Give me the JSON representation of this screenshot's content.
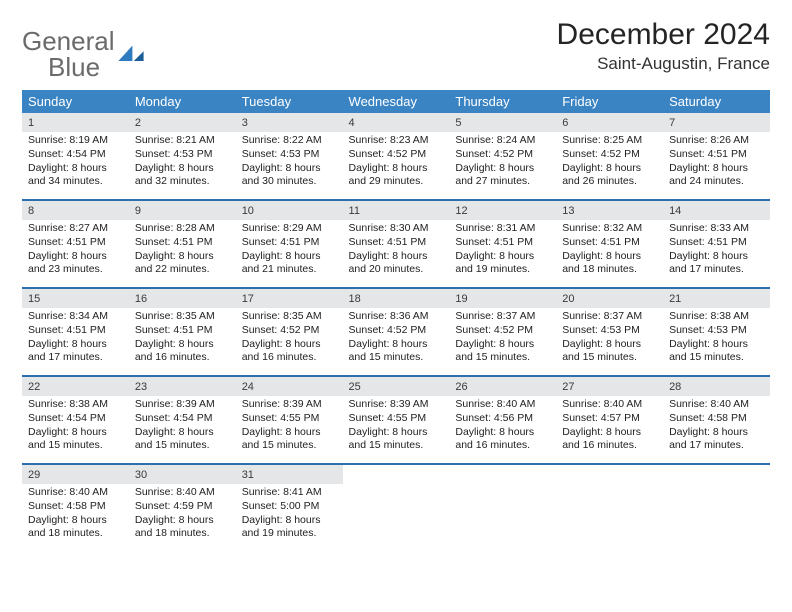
{
  "brand": {
    "word1": "General",
    "word2": "Blue"
  },
  "title": "December 2024",
  "location": "Saint-Augustin, France",
  "colors": {
    "header_bg": "#3b84c4",
    "header_text": "#ffffff",
    "row_sep": "#2a6fae",
    "daynum_bg": "#e4e6e8",
    "logo_gray": "#6b6b6b",
    "logo_blue": "#2f7bbf"
  },
  "weekdays": [
    "Sunday",
    "Monday",
    "Tuesday",
    "Wednesday",
    "Thursday",
    "Friday",
    "Saturday"
  ],
  "weeks": [
    [
      {
        "n": "1",
        "sr": "Sunrise: 8:19 AM",
        "ss": "Sunset: 4:54 PM",
        "d1": "Daylight: 8 hours",
        "d2": "and 34 minutes."
      },
      {
        "n": "2",
        "sr": "Sunrise: 8:21 AM",
        "ss": "Sunset: 4:53 PM",
        "d1": "Daylight: 8 hours",
        "d2": "and 32 minutes."
      },
      {
        "n": "3",
        "sr": "Sunrise: 8:22 AM",
        "ss": "Sunset: 4:53 PM",
        "d1": "Daylight: 8 hours",
        "d2": "and 30 minutes."
      },
      {
        "n": "4",
        "sr": "Sunrise: 8:23 AM",
        "ss": "Sunset: 4:52 PM",
        "d1": "Daylight: 8 hours",
        "d2": "and 29 minutes."
      },
      {
        "n": "5",
        "sr": "Sunrise: 8:24 AM",
        "ss": "Sunset: 4:52 PM",
        "d1": "Daylight: 8 hours",
        "d2": "and 27 minutes."
      },
      {
        "n": "6",
        "sr": "Sunrise: 8:25 AM",
        "ss": "Sunset: 4:52 PM",
        "d1": "Daylight: 8 hours",
        "d2": "and 26 minutes."
      },
      {
        "n": "7",
        "sr": "Sunrise: 8:26 AM",
        "ss": "Sunset: 4:51 PM",
        "d1": "Daylight: 8 hours",
        "d2": "and 24 minutes."
      }
    ],
    [
      {
        "n": "8",
        "sr": "Sunrise: 8:27 AM",
        "ss": "Sunset: 4:51 PM",
        "d1": "Daylight: 8 hours",
        "d2": "and 23 minutes."
      },
      {
        "n": "9",
        "sr": "Sunrise: 8:28 AM",
        "ss": "Sunset: 4:51 PM",
        "d1": "Daylight: 8 hours",
        "d2": "and 22 minutes."
      },
      {
        "n": "10",
        "sr": "Sunrise: 8:29 AM",
        "ss": "Sunset: 4:51 PM",
        "d1": "Daylight: 8 hours",
        "d2": "and 21 minutes."
      },
      {
        "n": "11",
        "sr": "Sunrise: 8:30 AM",
        "ss": "Sunset: 4:51 PM",
        "d1": "Daylight: 8 hours",
        "d2": "and 20 minutes."
      },
      {
        "n": "12",
        "sr": "Sunrise: 8:31 AM",
        "ss": "Sunset: 4:51 PM",
        "d1": "Daylight: 8 hours",
        "d2": "and 19 minutes."
      },
      {
        "n": "13",
        "sr": "Sunrise: 8:32 AM",
        "ss": "Sunset: 4:51 PM",
        "d1": "Daylight: 8 hours",
        "d2": "and 18 minutes."
      },
      {
        "n": "14",
        "sr": "Sunrise: 8:33 AM",
        "ss": "Sunset: 4:51 PM",
        "d1": "Daylight: 8 hours",
        "d2": "and 17 minutes."
      }
    ],
    [
      {
        "n": "15",
        "sr": "Sunrise: 8:34 AM",
        "ss": "Sunset: 4:51 PM",
        "d1": "Daylight: 8 hours",
        "d2": "and 17 minutes."
      },
      {
        "n": "16",
        "sr": "Sunrise: 8:35 AM",
        "ss": "Sunset: 4:51 PM",
        "d1": "Daylight: 8 hours",
        "d2": "and 16 minutes."
      },
      {
        "n": "17",
        "sr": "Sunrise: 8:35 AM",
        "ss": "Sunset: 4:52 PM",
        "d1": "Daylight: 8 hours",
        "d2": "and 16 minutes."
      },
      {
        "n": "18",
        "sr": "Sunrise: 8:36 AM",
        "ss": "Sunset: 4:52 PM",
        "d1": "Daylight: 8 hours",
        "d2": "and 15 minutes."
      },
      {
        "n": "19",
        "sr": "Sunrise: 8:37 AM",
        "ss": "Sunset: 4:52 PM",
        "d1": "Daylight: 8 hours",
        "d2": "and 15 minutes."
      },
      {
        "n": "20",
        "sr": "Sunrise: 8:37 AM",
        "ss": "Sunset: 4:53 PM",
        "d1": "Daylight: 8 hours",
        "d2": "and 15 minutes."
      },
      {
        "n": "21",
        "sr": "Sunrise: 8:38 AM",
        "ss": "Sunset: 4:53 PM",
        "d1": "Daylight: 8 hours",
        "d2": "and 15 minutes."
      }
    ],
    [
      {
        "n": "22",
        "sr": "Sunrise: 8:38 AM",
        "ss": "Sunset: 4:54 PM",
        "d1": "Daylight: 8 hours",
        "d2": "and 15 minutes."
      },
      {
        "n": "23",
        "sr": "Sunrise: 8:39 AM",
        "ss": "Sunset: 4:54 PM",
        "d1": "Daylight: 8 hours",
        "d2": "and 15 minutes."
      },
      {
        "n": "24",
        "sr": "Sunrise: 8:39 AM",
        "ss": "Sunset: 4:55 PM",
        "d1": "Daylight: 8 hours",
        "d2": "and 15 minutes."
      },
      {
        "n": "25",
        "sr": "Sunrise: 8:39 AM",
        "ss": "Sunset: 4:55 PM",
        "d1": "Daylight: 8 hours",
        "d2": "and 15 minutes."
      },
      {
        "n": "26",
        "sr": "Sunrise: 8:40 AM",
        "ss": "Sunset: 4:56 PM",
        "d1": "Daylight: 8 hours",
        "d2": "and 16 minutes."
      },
      {
        "n": "27",
        "sr": "Sunrise: 8:40 AM",
        "ss": "Sunset: 4:57 PM",
        "d1": "Daylight: 8 hours",
        "d2": "and 16 minutes."
      },
      {
        "n": "28",
        "sr": "Sunrise: 8:40 AM",
        "ss": "Sunset: 4:58 PM",
        "d1": "Daylight: 8 hours",
        "d2": "and 17 minutes."
      }
    ],
    [
      {
        "n": "29",
        "sr": "Sunrise: 8:40 AM",
        "ss": "Sunset: 4:58 PM",
        "d1": "Daylight: 8 hours",
        "d2": "and 18 minutes."
      },
      {
        "n": "30",
        "sr": "Sunrise: 8:40 AM",
        "ss": "Sunset: 4:59 PM",
        "d1": "Daylight: 8 hours",
        "d2": "and 18 minutes."
      },
      {
        "n": "31",
        "sr": "Sunrise: 8:41 AM",
        "ss": "Sunset: 5:00 PM",
        "d1": "Daylight: 8 hours",
        "d2": "and 19 minutes."
      },
      null,
      null,
      null,
      null
    ]
  ]
}
